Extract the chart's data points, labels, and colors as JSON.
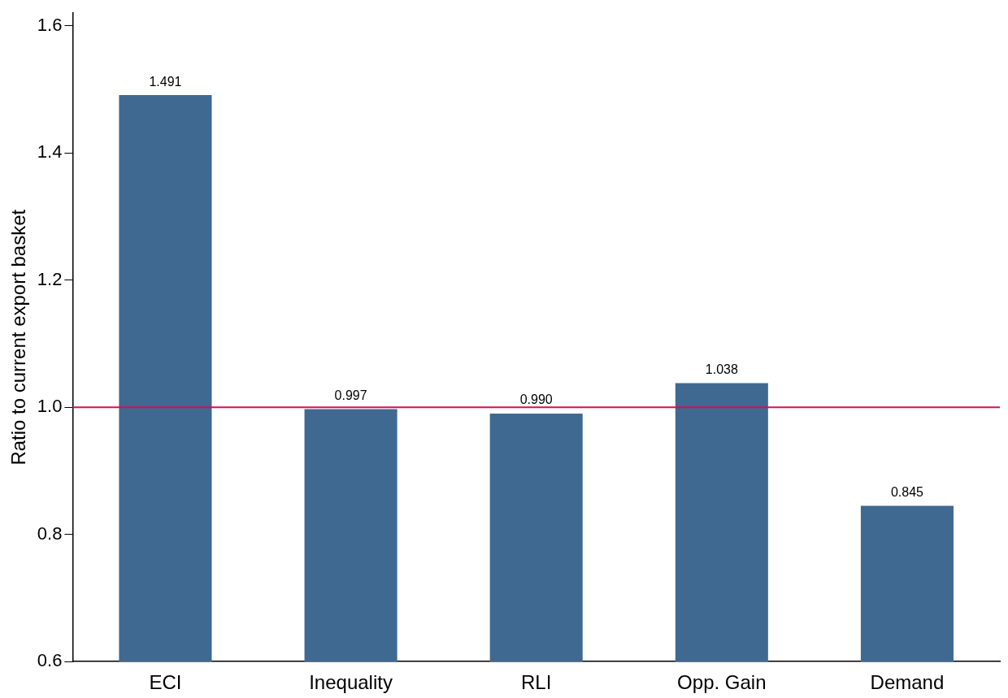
{
  "chart_data": {
    "type": "bar",
    "ylabel": "Ratio to current export basket",
    "categories": [
      "ECI",
      "Inequality",
      "RLI",
      "Opp. Gain",
      "Demand"
    ],
    "values": [
      1.491,
      0.997,
      0.99,
      1.038,
      0.845
    ],
    "value_labels": [
      "1.491",
      "0.997",
      "0.990",
      "1.038",
      "0.845"
    ],
    "color": "#3f6990",
    "ylim": [
      0.6,
      1.62
    ],
    "yticks": [
      {
        "value": 0.6,
        "label": "0.6"
      },
      {
        "value": 0.8,
        "label": "0.8"
      },
      {
        "value": 1,
        "label": "1.0"
      },
      {
        "value": 1.2,
        "label": "1.2"
      },
      {
        "value": 1.4,
        "label": "1.4"
      },
      {
        "value": 1.6,
        "label": "1.6"
      }
    ],
    "ref_lines": [
      {
        "axis": "y",
        "value": 1,
        "color": "#d6114f"
      }
    ],
    "grid": false,
    "legend": false
  }
}
